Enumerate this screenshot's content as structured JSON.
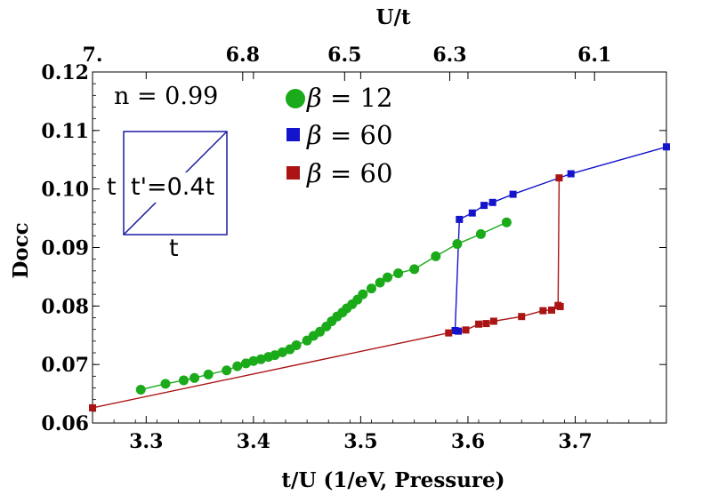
{
  "chart_data": {
    "type": "scatter",
    "xlabel": "t/U (1/eV, Pressure)",
    "ylabel": "Docc",
    "top_xlabel": "U/t",
    "xlim": [
      3.25,
      3.785
    ],
    "ylim": [
      0.06,
      0.12
    ],
    "x_ticks": [
      3.3,
      3.4,
      3.5,
      3.6,
      3.7
    ],
    "x_tick_labels": [
      "3.3",
      "3.4",
      "3.5",
      "3.6",
      "3.7"
    ],
    "y_ticks": [
      0.06,
      0.07,
      0.08,
      0.09,
      0.1,
      0.11,
      0.12
    ],
    "y_tick_labels": [
      "0.06",
      "0.07",
      "0.08",
      "0.09",
      "0.10",
      "0.11",
      "0.12"
    ],
    "top_ticks": [
      {
        "x": 3.25,
        "label": "7."
      },
      {
        "x": 3.39,
        "label": "6.8"
      },
      {
        "x": 3.485,
        "label": "6.5"
      },
      {
        "x": 3.583,
        "label": "6.3"
      },
      {
        "x": 3.718,
        "label": "6.1"
      }
    ],
    "annotations": {
      "density": "n = 0.99",
      "diag_label": "t'=0.4t",
      "side_label": "t",
      "bottom_label": "t"
    },
    "legend_symbol": "β",
    "series": [
      {
        "name": "β = 12",
        "color": "#1aaa1a",
        "marker": "circle",
        "x": [
          3.295,
          3.318,
          3.335,
          3.345,
          3.358,
          3.375,
          3.385,
          3.393,
          3.4,
          3.407,
          3.414,
          3.42,
          3.427,
          3.434,
          3.44,
          3.45,
          3.456,
          3.462,
          3.468,
          3.473,
          3.478,
          3.483,
          3.487,
          3.492,
          3.497,
          3.502,
          3.51,
          3.518,
          3.525,
          3.535,
          3.55,
          3.57,
          3.59,
          3.612,
          3.636
        ],
        "y": [
          0.0657,
          0.0667,
          0.0673,
          0.0677,
          0.0683,
          0.069,
          0.0697,
          0.0702,
          0.0706,
          0.0709,
          0.0713,
          0.0716,
          0.0721,
          0.0726,
          0.0733,
          0.0741,
          0.0749,
          0.0756,
          0.0765,
          0.0774,
          0.0782,
          0.0789,
          0.0796,
          0.0803,
          0.0811,
          0.082,
          0.083,
          0.084,
          0.0849,
          0.0856,
          0.0863,
          0.0885,
          0.0906,
          0.0923,
          0.0943
        ]
      },
      {
        "name": "β = 60",
        "color": "#1414cc",
        "marker": "square",
        "x": [
          3.591,
          3.588,
          3.592,
          3.604,
          3.615,
          3.623,
          3.642,
          3.696,
          3.785
        ],
        "y": [
          0.0757,
          0.0758,
          0.0948,
          0.0959,
          0.0972,
          0.0977,
          0.0991,
          0.1026,
          0.1072
        ]
      },
      {
        "name": "β = 60",
        "color": "#aa1414",
        "marker": "square",
        "x": [
          3.25,
          3.582,
          3.598,
          3.61,
          3.617,
          3.624,
          3.65,
          3.67,
          3.678,
          3.686,
          3.684,
          3.685
        ],
        "y": [
          0.0626,
          0.0754,
          0.0759,
          0.0769,
          0.077,
          0.0774,
          0.0782,
          0.0792,
          0.0793,
          0.0799,
          0.0801,
          0.1019
        ]
      }
    ]
  }
}
